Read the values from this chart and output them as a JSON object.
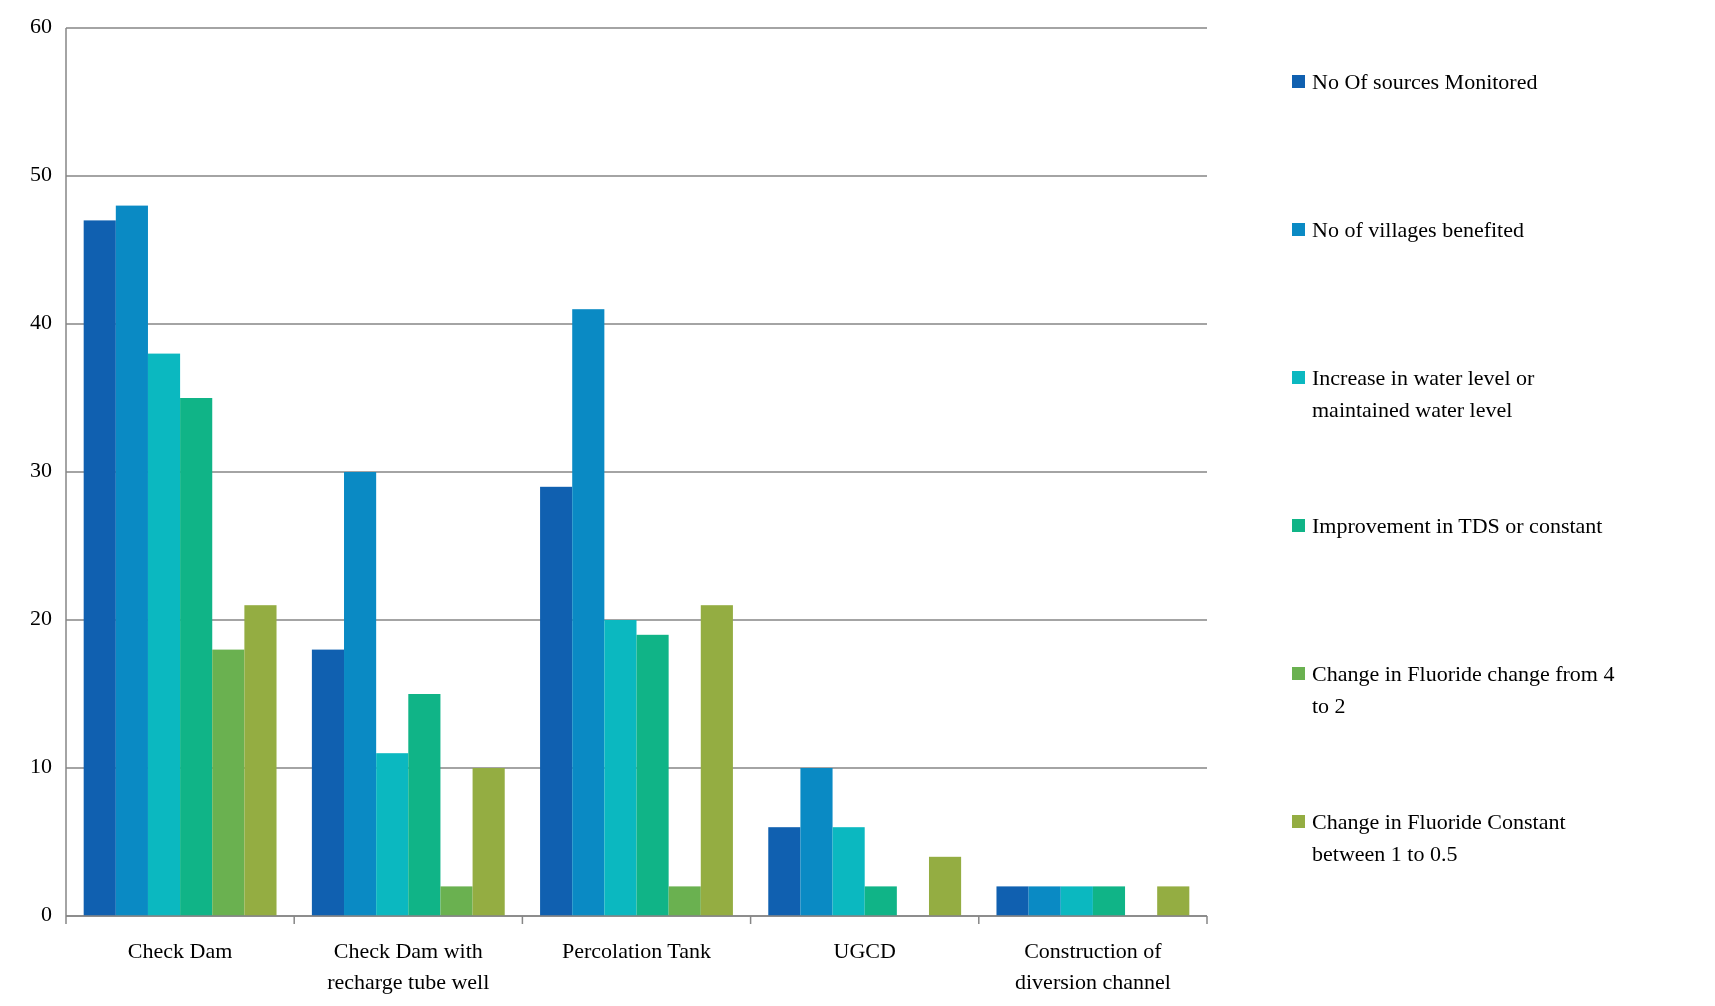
{
  "chart_data": {
    "type": "bar",
    "categories": [
      "Check Dam",
      "Check Dam with recharge tube well",
      "Percolation Tank",
      "UGCD",
      "Construction of diversion channel"
    ],
    "series": [
      {
        "name": "No Of sources Monitored",
        "color": "#1060b0",
        "values": [
          47,
          18,
          29,
          6,
          2
        ]
      },
      {
        "name": "No of villages benefited",
        "color": "#0a8ac4",
        "values": [
          48,
          30,
          41,
          10,
          2
        ]
      },
      {
        "name": "Increase in water level or maintained water level",
        "color": "#0bb8c0",
        "values": [
          38,
          11,
          20,
          6,
          2
        ]
      },
      {
        "name": "Improvement in TDS or constant",
        "color": "#10b487",
        "values": [
          35,
          15,
          19,
          2,
          2
        ]
      },
      {
        "name": "Change in Fluoride change from 4 to 2",
        "color": "#6ab150",
        "values": [
          18,
          2,
          2,
          0,
          0
        ]
      },
      {
        "name": "Change in Fluoride Constant between 1 to 0.5",
        "color": "#94ad42",
        "values": [
          21,
          10,
          21,
          4,
          2
        ]
      }
    ],
    "ylim": [
      0,
      60
    ],
    "yticks": [
      0,
      10,
      20,
      30,
      40,
      50,
      60
    ],
    "grid": "y",
    "legend": "right"
  }
}
